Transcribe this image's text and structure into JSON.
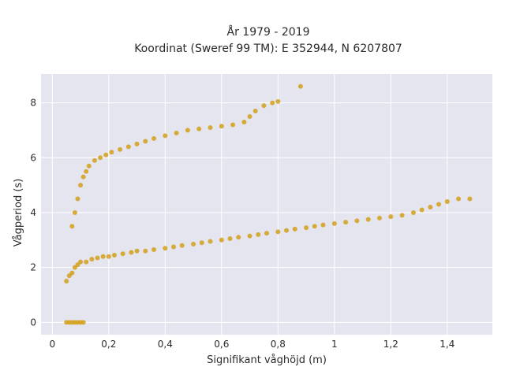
{
  "chart_data": {
    "type": "scatter",
    "title_lines": [
      "År 1979 - 2019",
      "Koordinat (Sweref 99 TM): E 352944, N 6207807"
    ],
    "xlabel": "Signifikant våghöjd (m)",
    "ylabel": "Vågperiod (s)",
    "xlim": [
      -0.04,
      1.56
    ],
    "ylim": [
      -0.45,
      9.05
    ],
    "x_ticks": [
      0,
      0.2,
      0.4,
      0.6,
      0.8,
      1,
      1.2,
      1.4
    ],
    "x_tick_labels": [
      "0",
      "0,2",
      "0,4",
      "0,6",
      "0,8",
      "1",
      "1,2",
      "1,4"
    ],
    "y_ticks": [
      0,
      2,
      4,
      6,
      8
    ],
    "y_tick_labels": [
      "0",
      "2",
      "4",
      "6",
      "8"
    ],
    "grid": true,
    "marker_color": "#D4A017",
    "background_color": "#E5E5F0",
    "series": [
      {
        "x": [
          0.05,
          0.06,
          0.07,
          0.08,
          0.09,
          0.1,
          0.11,
          0.05,
          0.06,
          0.07,
          0.08,
          0.09,
          0.1,
          0.12,
          0.14,
          0.16,
          0.18,
          0.2,
          0.22,
          0.25,
          0.28,
          0.3,
          0.33,
          0.36,
          0.4,
          0.43,
          0.46,
          0.5,
          0.53,
          0.56,
          0.6,
          0.63,
          0.66,
          0.7,
          0.73,
          0.76,
          0.8,
          0.83,
          0.86,
          0.9,
          0.93,
          0.96,
          1.0,
          1.04,
          1.08,
          1.12,
          1.16,
          1.2,
          1.24,
          1.28,
          1.31,
          1.34,
          1.37,
          1.4,
          1.44,
          1.48,
          0.07,
          0.08,
          0.09,
          0.1,
          0.11,
          0.12,
          0.13,
          0.15,
          0.17,
          0.19,
          0.21,
          0.24,
          0.27,
          0.3,
          0.33,
          0.36,
          0.4,
          0.44,
          0.48,
          0.52,
          0.56,
          0.6,
          0.64,
          0.68,
          0.7,
          0.72,
          0.75,
          0.78,
          0.8,
          0.88
        ],
        "y": [
          0,
          0,
          0,
          0,
          0,
          0,
          0,
          1.5,
          1.7,
          1.8,
          2.0,
          2.1,
          2.2,
          2.2,
          2.3,
          2.35,
          2.4,
          2.4,
          2.45,
          2.5,
          2.55,
          2.6,
          2.6,
          2.65,
          2.7,
          2.75,
          2.8,
          2.85,
          2.9,
          2.95,
          3.0,
          3.05,
          3.1,
          3.15,
          3.2,
          3.25,
          3.3,
          3.35,
          3.4,
          3.45,
          3.5,
          3.55,
          3.6,
          3.65,
          3.7,
          3.75,
          3.8,
          3.85,
          3.9,
          4.0,
          4.1,
          4.2,
          4.3,
          4.4,
          4.5,
          4.5,
          3.5,
          4.0,
          4.5,
          5.0,
          5.3,
          5.5,
          5.7,
          5.9,
          6.0,
          6.1,
          6.2,
          6.3,
          6.4,
          6.5,
          6.6,
          6.7,
          6.8,
          6.9,
          7.0,
          7.05,
          7.1,
          7.15,
          7.2,
          7.3,
          7.5,
          7.7,
          7.9,
          8.0,
          8.05,
          8.6
        ]
      }
    ]
  }
}
